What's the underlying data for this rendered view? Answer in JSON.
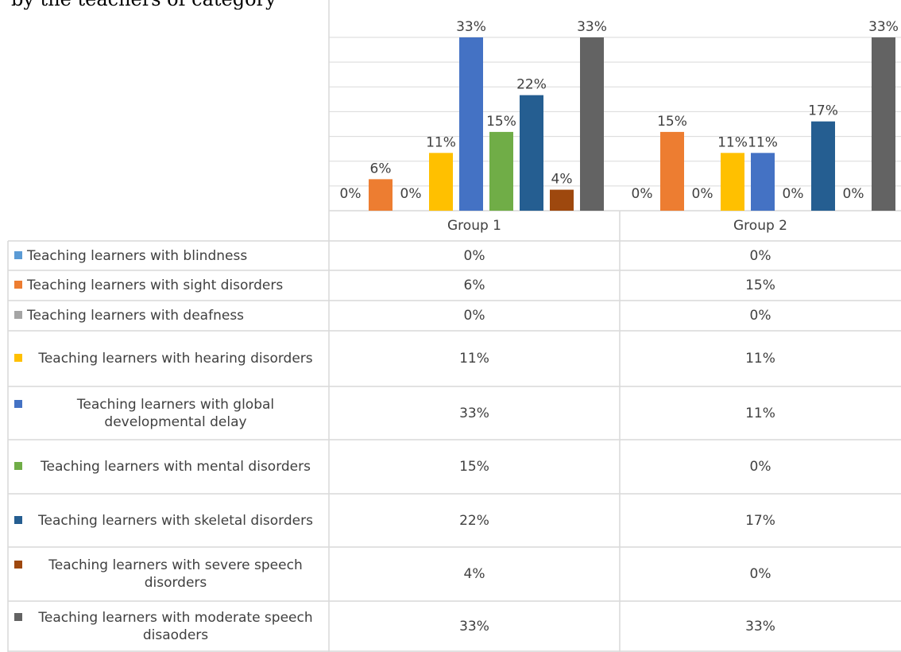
{
  "heading_fragment": "by the teachers of category",
  "chart_data": {
    "type": "bar",
    "categories": [
      "Group 1",
      "Group 2"
    ],
    "ylim": [
      0,
      33
    ],
    "grid": true,
    "legend": "table-left",
    "series": [
      {
        "name": "Teaching learners with blindness",
        "color": "#5B9BD5",
        "values": [
          0,
          0
        ],
        "labels": [
          "0%",
          "0%"
        ]
      },
      {
        "name": "Teaching learners with sight disorders",
        "color": "#ED7D31",
        "values": [
          6,
          15
        ],
        "labels": [
          "6%",
          "15%"
        ]
      },
      {
        "name": "Teaching learners with deafness",
        "color": "#A5A5A5",
        "values": [
          0,
          0
        ],
        "labels": [
          "0%",
          "0%"
        ]
      },
      {
        "name": "Teaching learners with hearing disorders",
        "color": "#FFC000",
        "values": [
          11,
          11
        ],
        "labels": [
          "11%",
          "11%"
        ]
      },
      {
        "name": "Teaching learners with global developmental delay",
        "color": "#4472C4",
        "values": [
          33,
          11
        ],
        "labels": [
          "33%",
          "11%"
        ]
      },
      {
        "name": "Teaching learners with mental disorders",
        "color": "#70AD47",
        "values": [
          15,
          0
        ],
        "labels": [
          "15%",
          "0%"
        ]
      },
      {
        "name": "Teaching learners with skeletal disorders",
        "color": "#255E91",
        "values": [
          22,
          17
        ],
        "labels": [
          "22%",
          "17%"
        ]
      },
      {
        "name": "Teaching learners with severe speech disorders",
        "color": "#9E480E",
        "values": [
          4,
          0
        ],
        "labels": [
          "4%",
          "0%"
        ]
      },
      {
        "name": "Teaching learners with moderate speech disaoders",
        "color": "#636363",
        "values": [
          33,
          33
        ],
        "labels": [
          "33%",
          "33%"
        ]
      }
    ]
  }
}
